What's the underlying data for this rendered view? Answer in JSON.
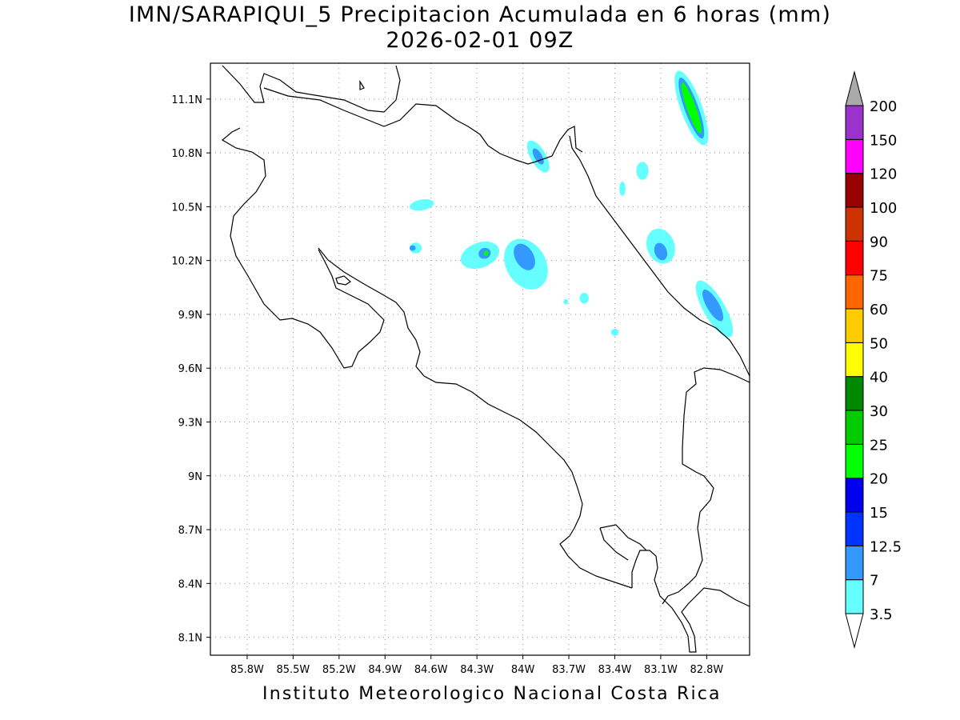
{
  "title_line1": "IMN/SARAPIQUI_5 Precipitacion Acumulada en 6 horas (mm)",
  "title_line2": "2026-02-01 09Z",
  "footer": "Instituto Meteorologico Nacional Costa Rica",
  "map": {
    "lon_range": [
      -86.04,
      -82.52
    ],
    "lat_range": [
      8.0,
      11.3
    ],
    "lon_ticks": [
      "85.8W",
      "85.5W",
      "85.2W",
      "84.9W",
      "84.6W",
      "84.3W",
      "84W",
      "83.7W",
      "83.4W",
      "83.1W",
      "82.8W"
    ],
    "lon_tick_values": [
      -85.8,
      -85.5,
      -85.2,
      -84.9,
      -84.6,
      -84.3,
      -84.0,
      -83.7,
      -83.4,
      -83.1,
      -82.8
    ],
    "lat_ticks": [
      "11.1N",
      "10.8N",
      "10.5N",
      "10.2N",
      "9.9N",
      "9.6N",
      "9.3N",
      "9N",
      "8.7N",
      "8.4N",
      "8.1N"
    ],
    "lat_tick_values": [
      11.1,
      10.8,
      10.5,
      10.2,
      9.9,
      9.6,
      9.3,
      9.0,
      8.7,
      8.4,
      8.1
    ],
    "grid": "dotted"
  },
  "legend": {
    "levels": [
      "3.5",
      "7",
      "12.5",
      "15",
      "20",
      "25",
      "30",
      "40",
      "50",
      "60",
      "75",
      "90",
      "100",
      "120",
      "150",
      "200"
    ],
    "colors": [
      "#66ffff",
      "#3399ff",
      "#0033ff",
      "#0000ee",
      "#00ff00",
      "#00cc00",
      "#008800",
      "#ffff00",
      "#ffcc00",
      "#ff6600",
      "#ff0000",
      "#cc3300",
      "#990000",
      "#ff00ff",
      "#9933cc",
      "#f4f4f4",
      "#aaaaaa"
    ]
  },
  "precip_cells": [
    {
      "lon": -82.9,
      "lat": 11.05,
      "color": "#66ffff",
      "rlon": 0.07,
      "rlat": 0.22,
      "rot": -20
    },
    {
      "lon": -82.9,
      "lat": 11.05,
      "color": "#3399ff",
      "rlon": 0.045,
      "rlat": 0.18,
      "rot": -20
    },
    {
      "lon": -82.9,
      "lat": 11.05,
      "color": "#00ff00",
      "rlon": 0.03,
      "rlat": 0.15,
      "rot": -20
    },
    {
      "lon": -83.9,
      "lat": 10.78,
      "color": "#66ffff",
      "rlon": 0.05,
      "rlat": 0.1,
      "rot": -30
    },
    {
      "lon": -83.9,
      "lat": 10.78,
      "color": "#3399ff",
      "rlon": 0.025,
      "rlat": 0.05,
      "rot": -30
    },
    {
      "lon": -84.66,
      "lat": 10.51,
      "color": "#66ffff",
      "rlon": 0.08,
      "rlat": 0.03,
      "rot": -10
    },
    {
      "lon": -84.28,
      "lat": 10.23,
      "color": "#66ffff",
      "rlon": 0.13,
      "rlat": 0.07,
      "rot": -20
    },
    {
      "lon": -84.25,
      "lat": 10.24,
      "color": "#3399ff",
      "rlon": 0.04,
      "rlat": 0.03,
      "rot": -20
    },
    {
      "lon": -84.24,
      "lat": 10.24,
      "color": "#00ff00",
      "rlon": 0.015,
      "rlat": 0.015,
      "rot": 0
    },
    {
      "lon": -83.98,
      "lat": 10.18,
      "color": "#66ffff",
      "rlon": 0.13,
      "rlat": 0.15,
      "rot": -30
    },
    {
      "lon": -83.99,
      "lat": 10.22,
      "color": "#3399ff",
      "rlon": 0.06,
      "rlat": 0.08,
      "rot": -30
    },
    {
      "lon": -84.7,
      "lat": 10.27,
      "color": "#66ffff",
      "rlon": 0.04,
      "rlat": 0.03,
      "rot": 0
    },
    {
      "lon": -84.72,
      "lat": 10.27,
      "color": "#3399ff",
      "rlon": 0.02,
      "rlat": 0.015,
      "rot": 0
    },
    {
      "lon": -83.1,
      "lat": 10.28,
      "color": "#66ffff",
      "rlon": 0.09,
      "rlat": 0.1,
      "rot": -20
    },
    {
      "lon": -83.1,
      "lat": 10.25,
      "color": "#3399ff",
      "rlon": 0.04,
      "rlat": 0.05,
      "rot": -20
    },
    {
      "lon": -83.22,
      "lat": 10.7,
      "color": "#66ffff",
      "rlon": 0.04,
      "rlat": 0.05,
      "rot": 0
    },
    {
      "lon": -82.75,
      "lat": 9.93,
      "color": "#66ffff",
      "rlon": 0.07,
      "rlat": 0.18,
      "rot": -30
    },
    {
      "lon": -82.76,
      "lat": 9.95,
      "color": "#3399ff",
      "rlon": 0.04,
      "rlat": 0.1,
      "rot": -30
    },
    {
      "lon": -83.35,
      "lat": 10.6,
      "color": "#66ffff",
      "rlon": 0.02,
      "rlat": 0.04,
      "rot": 0
    },
    {
      "lon": -83.6,
      "lat": 9.99,
      "color": "#66ffff",
      "rlon": 0.03,
      "rlat": 0.03,
      "rot": 0
    },
    {
      "lon": -83.4,
      "lat": 9.8,
      "color": "#66ffff",
      "rlon": 0.025,
      "rlat": 0.02,
      "rot": 0
    },
    {
      "lon": -83.72,
      "lat": 9.97,
      "color": "#66ffff",
      "rlon": 0.015,
      "rlat": 0.015,
      "rot": 0
    }
  ]
}
